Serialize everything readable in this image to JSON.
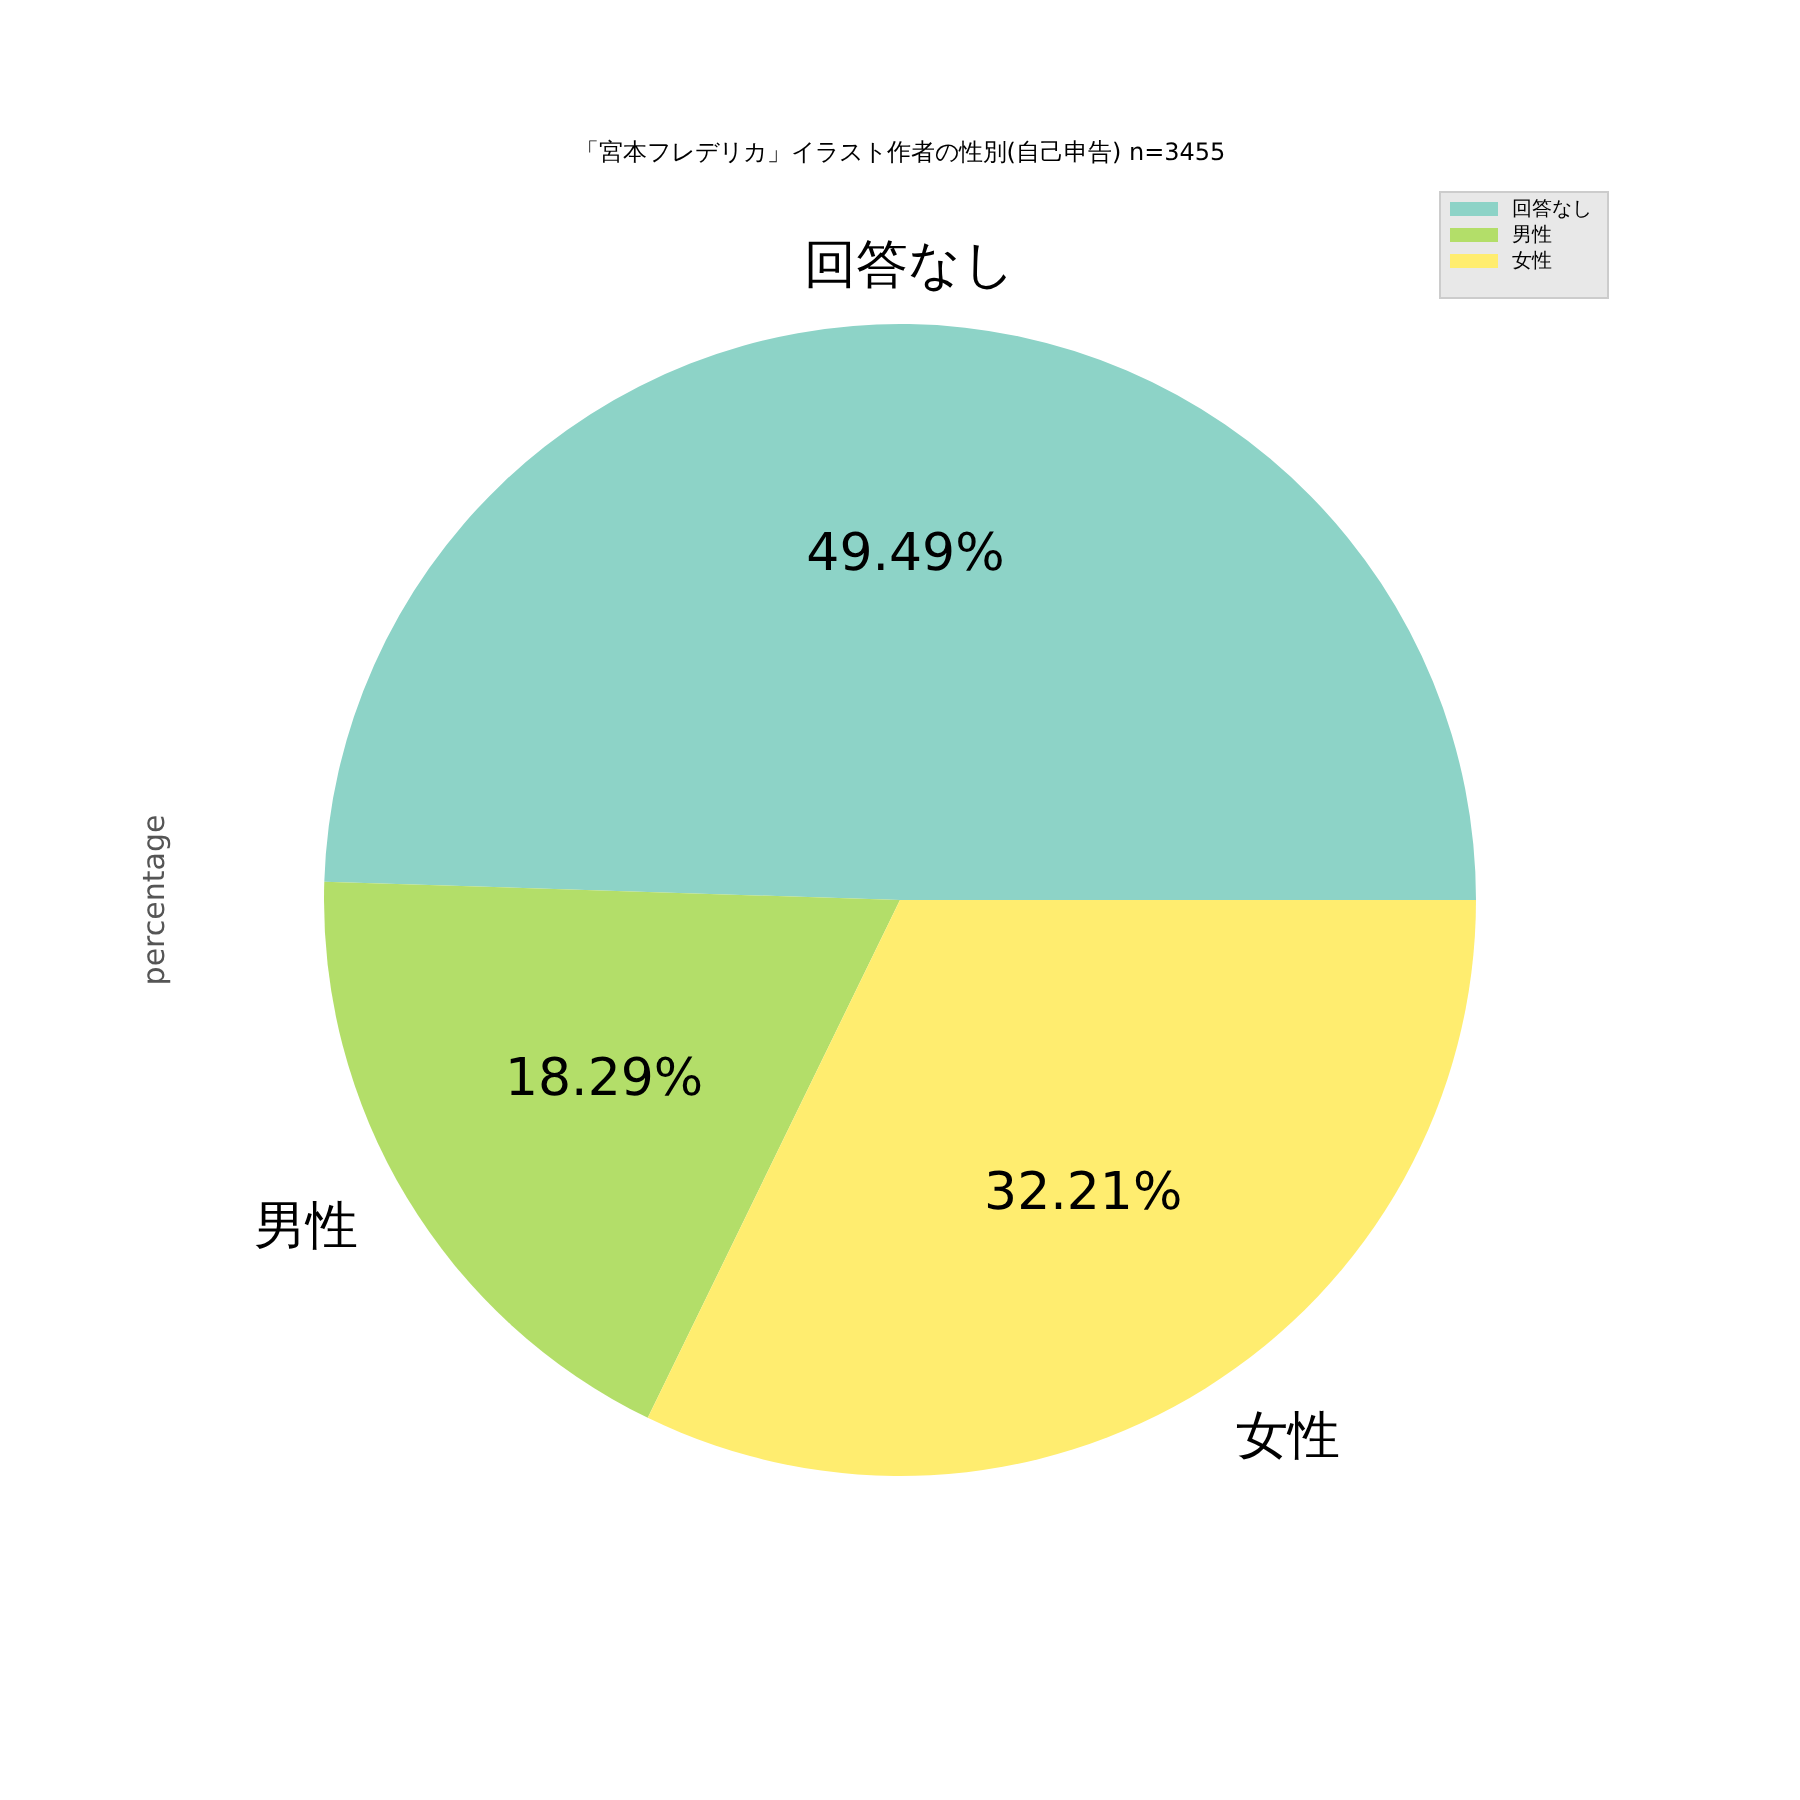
{
  "chart_data": {
    "type": "pie",
    "title": "「宮本フレデリカ」イラスト作者の性別(自己申告) n=3455",
    "ylabel": "percentage",
    "categories": [
      "回答なし",
      "男性",
      "女性"
    ],
    "values": [
      49.49,
      18.29,
      32.21
    ],
    "value_labels": [
      "49.49%",
      "18.29%",
      "32.21%"
    ],
    "colors": [
      "#8dd3c7",
      "#b3de69",
      "#ffed6f"
    ],
    "legend": "top right"
  }
}
